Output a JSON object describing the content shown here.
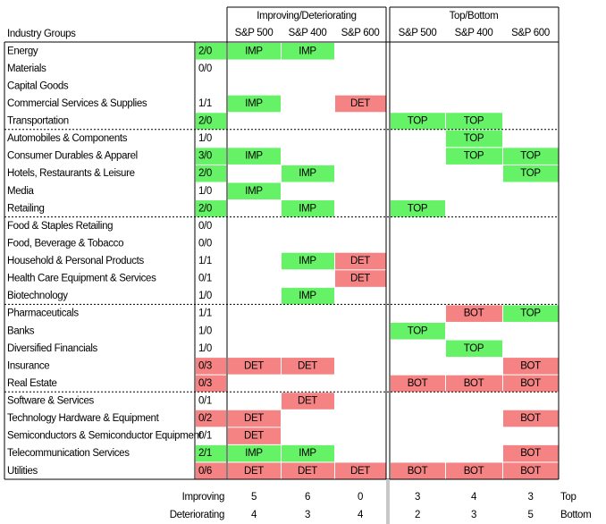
{
  "header": {
    "group_labels": [
      "Improving/Deteriorating",
      "Top/Bottom"
    ],
    "row_header": "Industry Groups",
    "columns": [
      "S&P 500",
      "S&P 400",
      "S&P 600",
      "S&P 500",
      "S&P 400",
      "S&P 600"
    ]
  },
  "groups": [
    {
      "rows": [
        {
          "name": "Energy",
          "ratio": "2/0",
          "ratio_color": "#66f266",
          "cells": [
            {
              "text": "IMP",
              "color": "#66f266"
            },
            {
              "text": "IMP",
              "color": "#66f266"
            },
            null,
            null,
            null,
            null
          ]
        },
        {
          "name": "Materials",
          "ratio": "0/0",
          "cells": [
            null,
            null,
            null,
            null,
            null,
            null
          ]
        },
        {
          "name": "Capital Goods",
          "cells": [
            null,
            null,
            null,
            null,
            null,
            null
          ]
        },
        {
          "name": "Commercial Services & Supplies",
          "ratio": "1/1",
          "cells": [
            {
              "text": "IMP",
              "color": "#66f266"
            },
            null,
            {
              "text": "DET",
              "color": "#f58383"
            },
            null,
            null,
            null
          ]
        },
        {
          "name": "Transportation",
          "ratio": "2/0",
          "ratio_color": "#66f266",
          "cells": [
            null,
            null,
            null,
            {
              "text": "TOP",
              "color": "#66f266"
            },
            {
              "text": "TOP",
              "color": "#66f266"
            },
            null
          ]
        }
      ]
    },
    {
      "rows": [
        {
          "name": "Automobiles & Components",
          "ratio": "1/0",
          "cells": [
            null,
            null,
            null,
            null,
            {
              "text": "TOP",
              "color": "#66f266"
            },
            null
          ]
        },
        {
          "name": "Consumer Durables & Apparel",
          "ratio": "3/0",
          "ratio_color": "#66f266",
          "cells": [
            {
              "text": "IMP",
              "color": "#66f266"
            },
            null,
            null,
            null,
            {
              "text": "TOP",
              "color": "#66f266"
            },
            {
              "text": "TOP",
              "color": "#66f266"
            }
          ]
        },
        {
          "name": "Hotels, Restaurants & Leisure",
          "ratio": "2/0",
          "ratio_color": "#66f266",
          "cells": [
            null,
            {
              "text": "IMP",
              "color": "#66f266"
            },
            null,
            null,
            null,
            {
              "text": "TOP",
              "color": "#66f266"
            }
          ]
        },
        {
          "name": "Media",
          "ratio": "1/0",
          "cells": [
            {
              "text": "IMP",
              "color": "#66f266"
            },
            null,
            null,
            null,
            null,
            null
          ]
        },
        {
          "name": "Retailing",
          "ratio": "2/0",
          "ratio_color": "#66f266",
          "cells": [
            null,
            {
              "text": "IMP",
              "color": "#66f266"
            },
            null,
            {
              "text": "TOP",
              "color": "#66f266"
            },
            null,
            null
          ]
        }
      ]
    },
    {
      "rows": [
        {
          "name": "Food & Staples Retailing",
          "ratio": "0/0",
          "cells": [
            null,
            null,
            null,
            null,
            null,
            null
          ]
        },
        {
          "name": "Food, Beverage & Tobacco",
          "ratio": "0/0",
          "cells": [
            null,
            null,
            null,
            null,
            null,
            null
          ]
        },
        {
          "name": "Household & Personal Products",
          "ratio": "1/1",
          "cells": [
            null,
            {
              "text": "IMP",
              "color": "#66f266"
            },
            {
              "text": "DET",
              "color": "#f58383"
            },
            null,
            null,
            null
          ]
        },
        {
          "name": "Health Care Equipment & Services",
          "ratio": "0/1",
          "cells": [
            null,
            null,
            {
              "text": "DET",
              "color": "#f58383"
            },
            null,
            null,
            null
          ]
        },
        {
          "name": "Biotechnology",
          "ratio": "1/0",
          "cells": [
            null,
            {
              "text": "IMP",
              "color": "#66f266"
            },
            null,
            null,
            null,
            null
          ]
        }
      ]
    },
    {
      "rows": [
        {
          "name": "Pharmaceuticals",
          "ratio": "1/1",
          "cells": [
            null,
            null,
            null,
            null,
            {
              "text": "BOT",
              "color": "#f58383"
            },
            {
              "text": "TOP",
              "color": "#66f266"
            }
          ]
        },
        {
          "name": "Banks",
          "ratio": "1/0",
          "cells": [
            null,
            null,
            null,
            {
              "text": "TOP",
              "color": "#66f266"
            },
            null,
            null
          ]
        },
        {
          "name": "Diversified Financials",
          "ratio": "1/0",
          "cells": [
            null,
            null,
            null,
            null,
            {
              "text": "TOP",
              "color": "#66f266"
            },
            null
          ]
        },
        {
          "name": "Insurance",
          "ratio": "0/3",
          "ratio_color": "#f58383",
          "cells": [
            {
              "text": "DET",
              "color": "#f58383"
            },
            {
              "text": "DET",
              "color": "#f58383"
            },
            null,
            null,
            null,
            {
              "text": "BOT",
              "color": "#f58383"
            }
          ]
        },
        {
          "name": "Real Estate",
          "ratio": "0/3",
          "ratio_color": "#f58383",
          "cells": [
            null,
            null,
            null,
            {
              "text": "BOT",
              "color": "#f58383"
            },
            {
              "text": "BOT",
              "color": "#f58383"
            },
            {
              "text": "BOT",
              "color": "#f58383"
            }
          ]
        }
      ]
    },
    {
      "rows": [
        {
          "name": "Software & Services",
          "ratio": "0/1",
          "cells": [
            null,
            {
              "text": "DET",
              "color": "#f58383"
            },
            null,
            null,
            null,
            null
          ]
        },
        {
          "name": "Technology Hardware & Equipment",
          "ratio": "0/2",
          "ratio_color": "#f58383",
          "cells": [
            {
              "text": "DET",
              "color": "#f58383"
            },
            null,
            null,
            null,
            null,
            {
              "text": "BOT",
              "color": "#f58383"
            }
          ]
        },
        {
          "name": "Semiconductors & Semiconductor Equipment",
          "ratio": "0/1",
          "cells": [
            {
              "text": "DET",
              "color": "#f58383"
            },
            null,
            null,
            null,
            null,
            null
          ]
        },
        {
          "name": "Telecommunication Services",
          "ratio": "2/1",
          "ratio_color": "#66f266",
          "cells": [
            {
              "text": "IMP",
              "color": "#66f266"
            },
            {
              "text": "IMP",
              "color": "#66f266"
            },
            null,
            null,
            null,
            {
              "text": "BOT",
              "color": "#f58383"
            }
          ]
        },
        {
          "name": "Utilities",
          "ratio": "0/6",
          "ratio_color": "#f58383",
          "cells": [
            {
              "text": "DET",
              "color": "#f58383"
            },
            {
              "text": "DET",
              "color": "#f58383"
            },
            {
              "text": "DET",
              "color": "#f58383"
            },
            {
              "text": "BOT",
              "color": "#f58383"
            },
            {
              "text": "BOT",
              "color": "#f58383"
            },
            {
              "text": "BOT",
              "color": "#f58383"
            }
          ]
        }
      ]
    }
  ],
  "summary": [
    {
      "label": "Improving",
      "values": [
        5,
        6,
        0,
        3,
        4,
        3
      ],
      "note": "Top"
    },
    {
      "label": "Deteriorating",
      "values": [
        4,
        3,
        4,
        2,
        3,
        5
      ],
      "note": "Bottom"
    }
  ]
}
